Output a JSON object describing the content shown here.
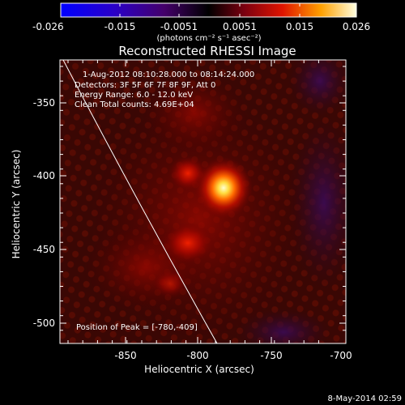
{
  "colorbar": {
    "ticks": [
      "-0.026",
      "-0.015",
      "-0.0051",
      "0.0051",
      "0.015",
      "0.026"
    ],
    "unit_label": "(photons cm⁻² s⁻¹ asec⁻²)"
  },
  "title": "Reconstructed RHESSI Image",
  "info": {
    "time_range": "1-Aug-2012 08:10:28.000 to 08:14:24.000",
    "detectors": "Detectors: 3F 5F 6F 7F 8F 9F, Att 0",
    "energy_range": "Energy Range: 6.0 - 12.0 keV",
    "algorithm_counts": "Clean     Total counts: 4.69E+04"
  },
  "peak_label": "Position of Peak = [-780,-409]",
  "axes": {
    "xlabel": "Heliocentric X (arcsec)",
    "ylabel": "Heliocentric Y (arcsec)",
    "x_ticks": [
      "-850",
      "-800",
      "-750",
      "-700"
    ],
    "y_ticks": [
      "-350",
      "-400",
      "-450",
      "-500"
    ]
  },
  "timestamp": "8-May-2014 02:59"
}
